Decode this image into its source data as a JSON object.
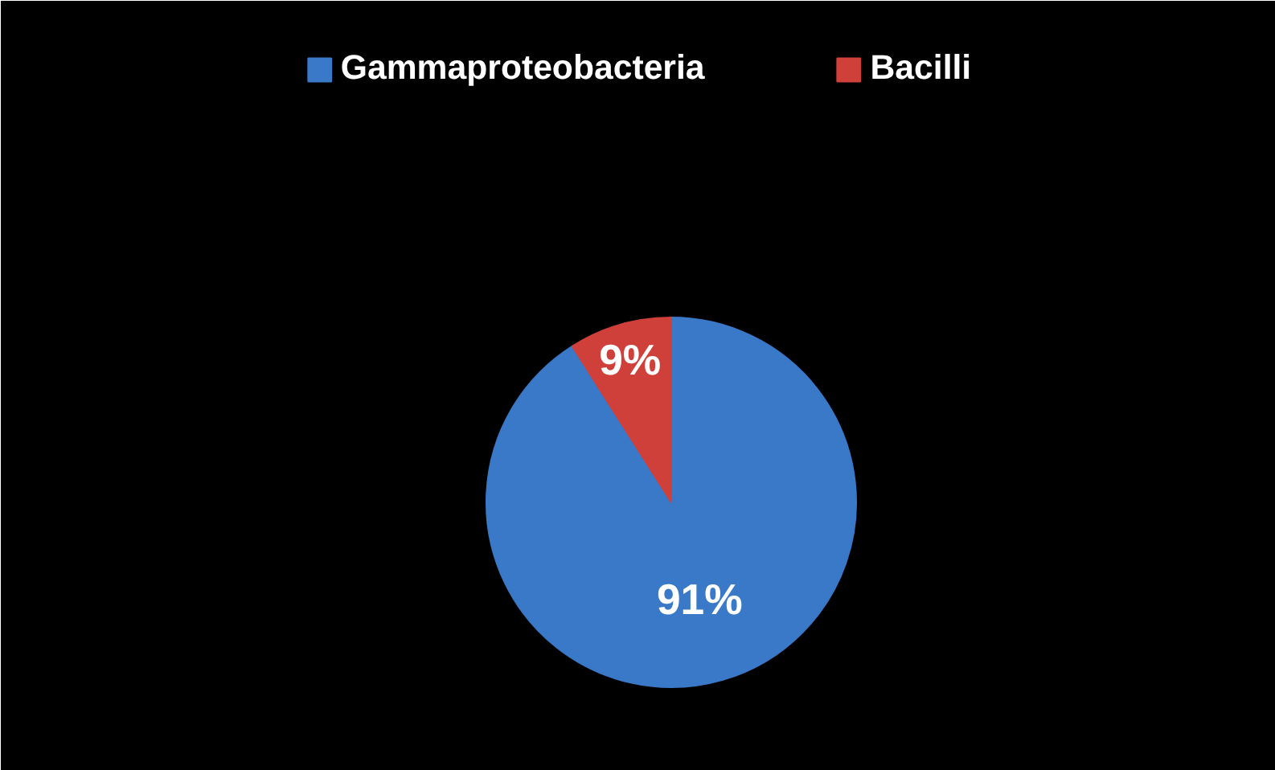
{
  "chart_data": {
    "type": "pie",
    "categories": [
      "Gammaproteobacteria",
      "Bacilli"
    ],
    "values": [
      91,
      9
    ],
    "colors": [
      "#3a78c8",
      "#d0403a"
    ],
    "value_labels": [
      "91%",
      "9%"
    ],
    "legend": "top"
  }
}
